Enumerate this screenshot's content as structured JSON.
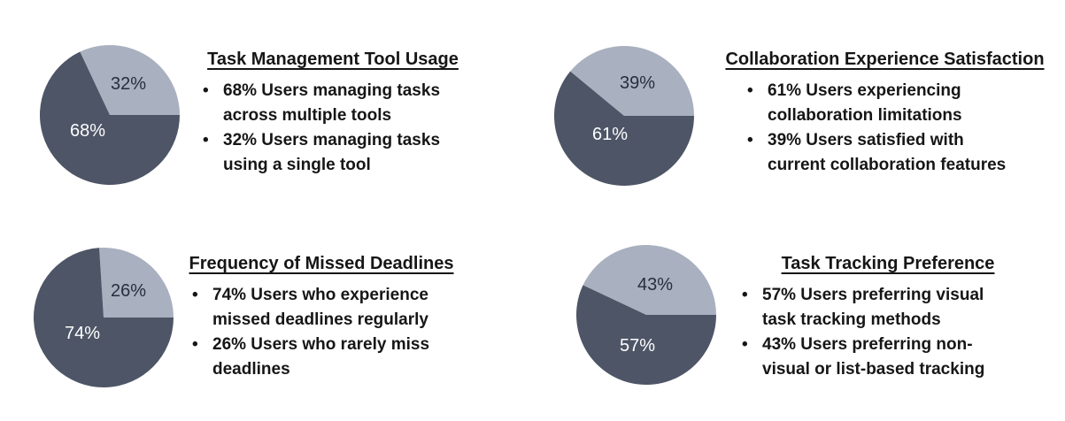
{
  "page": {
    "background": "#ffffff",
    "bullet_char": "•"
  },
  "palette": {
    "dark_slice": "#4d5566",
    "light_slice": "#a9b0bf",
    "pct_label_on_dark": "#ffffff",
    "pct_label_on_light": "#272e3f",
    "text_color": "#161616"
  },
  "chart_data": [
    {
      "type": "pie",
      "title": "Task Management Tool Usage",
      "legend_position": "none",
      "start_angle_deg": 0,
      "direction": "counterclockwise",
      "slices": [
        {
          "label": "Users managing tasks across multiple tools",
          "value": 68,
          "pct_label": "68%",
          "color": "#4d5566",
          "pct_label_color": "#ffffff"
        },
        {
          "label": "Users managing tasks using a single tool",
          "value": 32,
          "pct_label": "32%",
          "color": "#a9b0bf",
          "pct_label_color": "#272e3f"
        }
      ],
      "bullets": [
        "68% Users managing tasks\nacross multiple tools",
        "32% Users managing tasks\nusing a single tool"
      ]
    },
    {
      "type": "pie",
      "title": "Collaboration Experience Satisfaction",
      "legend_position": "none",
      "start_angle_deg": 0,
      "direction": "counterclockwise",
      "slices": [
        {
          "label": "Users experiencing collaboration limitations",
          "value": 61,
          "pct_label": "61%",
          "color": "#4d5566",
          "pct_label_color": "#ffffff"
        },
        {
          "label": "Users satisfied with current collaboration features",
          "value": 39,
          "pct_label": "39%",
          "color": "#a9b0bf",
          "pct_label_color": "#272e3f"
        }
      ],
      "bullets": [
        "61% Users experiencing\ncollaboration limitations",
        "39% Users satisfied with\ncurrent collaboration features"
      ]
    },
    {
      "type": "pie",
      "title": "Frequency of Missed Deadlines",
      "legend_position": "none",
      "start_angle_deg": 0,
      "direction": "counterclockwise",
      "slices": [
        {
          "label": "Users who experience missed deadlines regularly",
          "value": 74,
          "pct_label": "74%",
          "color": "#4d5566",
          "pct_label_color": "#ffffff"
        },
        {
          "label": "Users who rarely miss deadlines",
          "value": 26,
          "pct_label": "26%",
          "color": "#a9b0bf",
          "pct_label_color": "#272e3f"
        }
      ],
      "bullets": [
        "74% Users who experience\nmissed deadlines regularly",
        "26% Users who rarely miss\ndeadlines"
      ]
    },
    {
      "type": "pie",
      "title": "Task Tracking Preference",
      "legend_position": "none",
      "start_angle_deg": 0,
      "direction": "counterclockwise",
      "slices": [
        {
          "label": "Users preferring visual task tracking methods",
          "value": 57,
          "pct_label": "57%",
          "color": "#4d5566",
          "pct_label_color": "#ffffff"
        },
        {
          "label": "Users preferring non-visual or list-based tracking",
          "value": 43,
          "pct_label": "43%",
          "color": "#a9b0bf",
          "pct_label_color": "#272e3f"
        }
      ],
      "bullets": [
        "57% Users preferring visual\ntask tracking methods",
        "43% Users preferring non-\nvisual or list-based tracking"
      ]
    }
  ]
}
